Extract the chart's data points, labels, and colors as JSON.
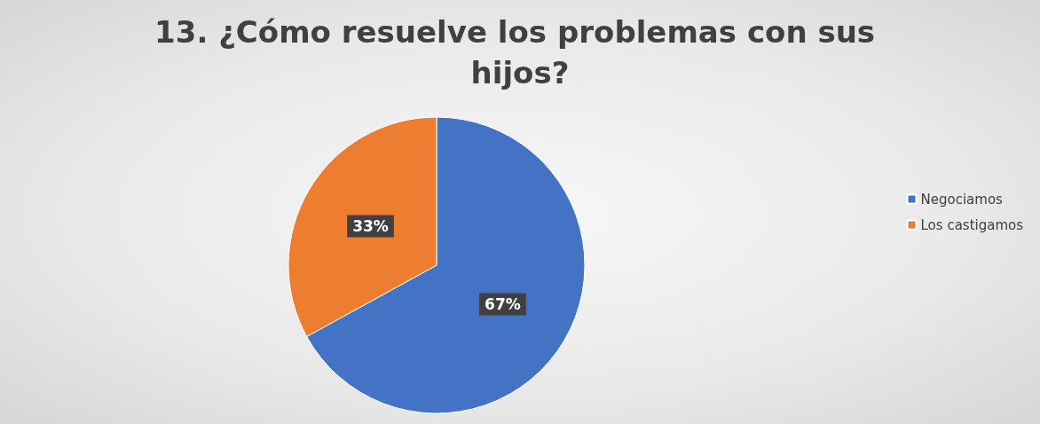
{
  "chart_data": {
    "type": "pie",
    "title": "13. ¿Cómo resuelve los problemas con sus hijos?",
    "categories": [
      "Negociamos",
      "Los castigamos"
    ],
    "values": [
      67,
      33
    ],
    "colors": [
      "#4472c4",
      "#ed7d31"
    ],
    "value_labels": [
      "67%",
      "33%"
    ],
    "legend": "right"
  }
}
